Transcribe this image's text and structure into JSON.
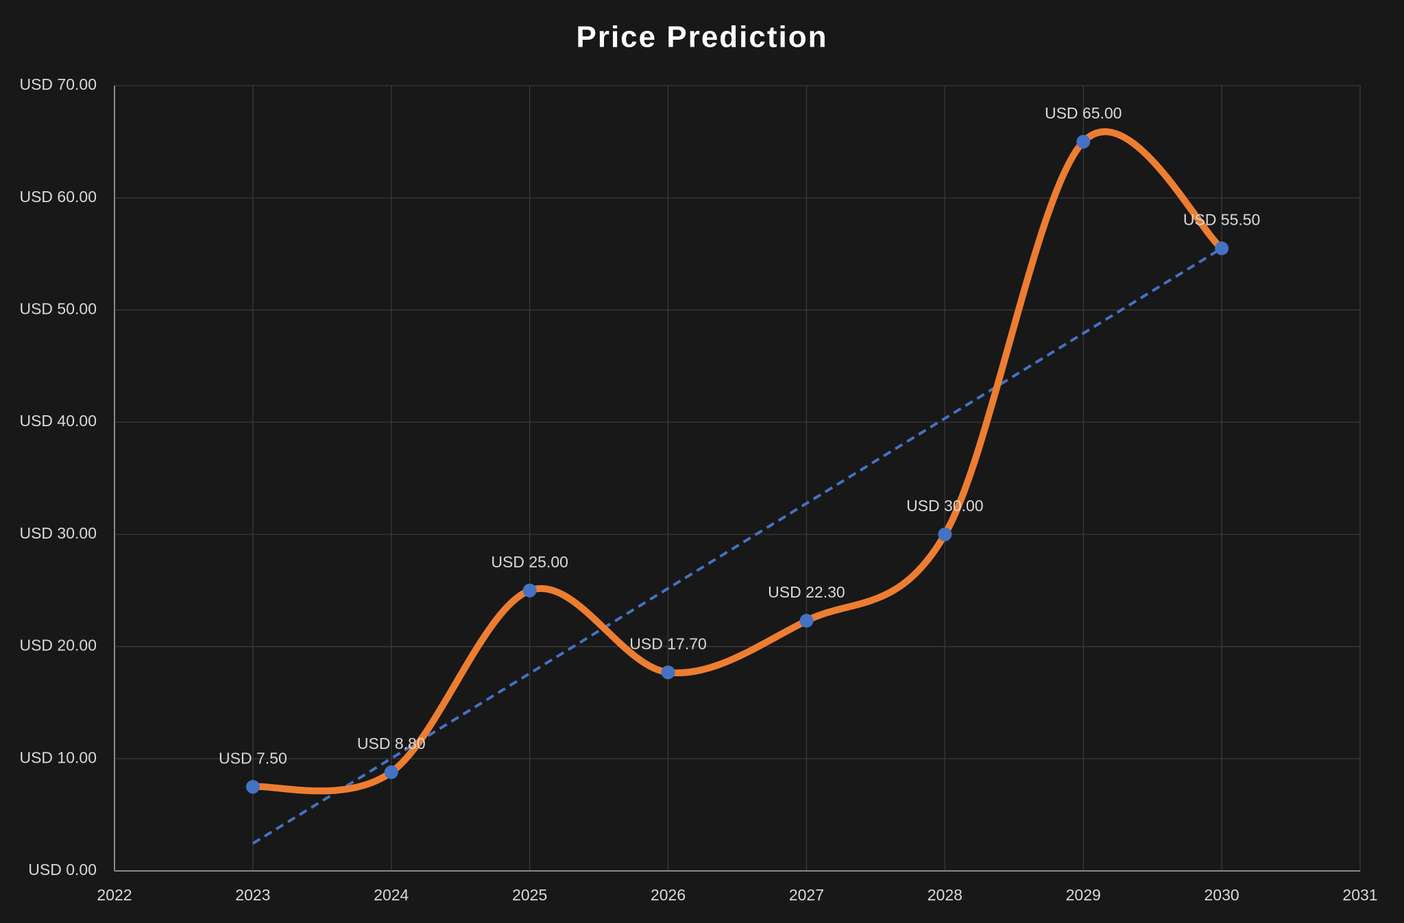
{
  "chart_data": {
    "type": "line",
    "title": "Price Prediction",
    "x": [
      2023,
      2024,
      2025,
      2026,
      2027,
      2028,
      2029,
      2030
    ],
    "series": [
      {
        "color": "#ed7d31",
        "marker_color": "#4472c4",
        "values": [
          7.5,
          8.8,
          25,
          17.7,
          22.3,
          30,
          65,
          55.5
        ],
        "value_labels": [
          "USD 7.50",
          "USD 8.80",
          "USD 25.00",
          "USD 17.70",
          "USD 22.30",
          "USD 30.00",
          "USD 65.00",
          "USD 55.50"
        ],
        "smooth": true,
        "trendline": "linear",
        "trendline_color": "#4472c4"
      }
    ],
    "xlim": [
      2022,
      2031
    ],
    "xticks": [
      2022,
      2023,
      2024,
      2025,
      2026,
      2027,
      2028,
      2029,
      2030,
      2031
    ],
    "ylim": [
      0,
      70
    ],
    "yticks": [
      {
        "value": 0,
        "label": "USD 0.00"
      },
      {
        "value": 10,
        "label": "USD 10.00"
      },
      {
        "value": 20,
        "label": "USD 20.00"
      },
      {
        "value": 30,
        "label": "USD 30.00"
      },
      {
        "value": 40,
        "label": "USD 40.00"
      },
      {
        "value": 50,
        "label": "USD 50.00"
      },
      {
        "value": 60,
        "label": "USD 60.00"
      },
      {
        "value": 70,
        "label": "USD 70.00"
      }
    ],
    "grid": true
  }
}
